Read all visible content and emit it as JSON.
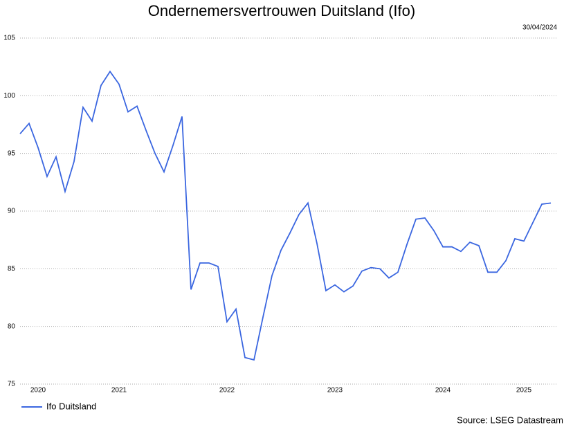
{
  "chart_data": {
    "type": "line",
    "title": "Ondernemersvertrouwen Duitsland (Ifo)",
    "date": "30/04/2024",
    "source": "Source: LSEG Datastream",
    "categories": [
      null,
      null,
      "2020",
      null,
      null,
      null,
      null,
      null,
      null,
      null,
      null,
      "2021",
      null,
      null,
      null,
      null,
      null,
      null,
      null,
      null,
      null,
      null,
      null,
      "2022",
      null,
      null,
      null,
      null,
      null,
      null,
      null,
      null,
      null,
      null,
      null,
      "2023",
      null,
      null,
      null,
      null,
      null,
      null,
      null,
      null,
      null,
      null,
      null,
      "2024",
      null,
      null,
      null,
      null,
      null,
      null,
      null,
      null,
      "2025",
      null,
      null,
      null
    ],
    "series": [
      {
        "name": "Ifo Duitsland",
        "color": "#3a66e0",
        "values": [
          96.7,
          97.6,
          95.5,
          93.0,
          94.7,
          91.7,
          94.3,
          99.0,
          97.8,
          100.9,
          102.1,
          101.0,
          98.6,
          99.1,
          97.0,
          95.0,
          93.4,
          95.7,
          98.2,
          83.2,
          85.5,
          85.5,
          85.2,
          80.4,
          81.5,
          77.3,
          77.1,
          80.8,
          84.4,
          86.6,
          88.1,
          89.7,
          90.7,
          87.2,
          83.1,
          83.6,
          83.0,
          83.5,
          84.8,
          85.1,
          85.0,
          84.2,
          84.7,
          87.1,
          89.3,
          89.4,
          88.3,
          86.9,
          86.9,
          86.5,
          87.3,
          87.0,
          84.7,
          84.7,
          85.7,
          87.6,
          87.4,
          89.0,
          90.6,
          90.7
        ]
      }
    ],
    "ylim": [
      75,
      105
    ],
    "yticks": [
      75,
      80,
      85,
      90,
      95,
      100,
      105
    ],
    "grid": true,
    "legend": "bottom-left"
  }
}
